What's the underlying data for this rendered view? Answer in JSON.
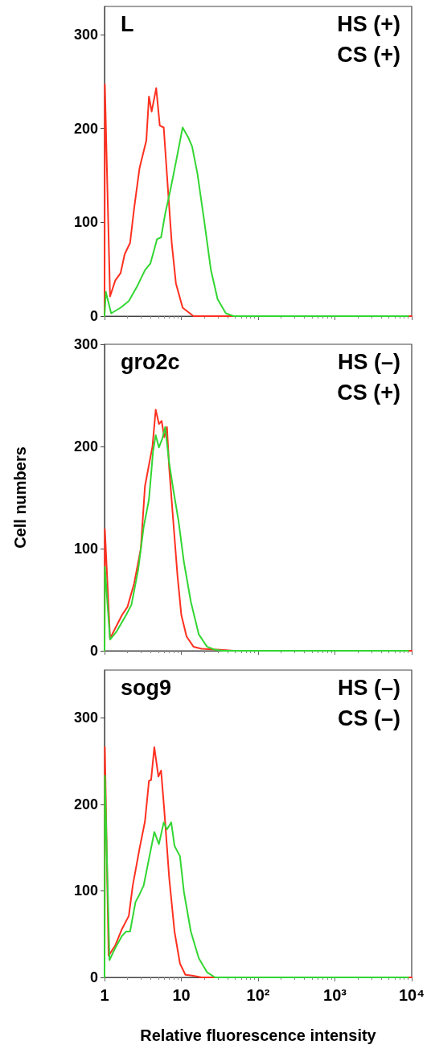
{
  "chart_data": [
    {
      "type": "line",
      "annotations": [
        "L",
        "HS (+)",
        "CS (+)"
      ],
      "log": "x",
      "xlim": [
        1,
        10000
      ],
      "xticks": [
        {
          "value": 1,
          "label": null
        },
        {
          "value": 10,
          "label": null
        },
        {
          "value": 100,
          "label": null
        },
        {
          "value": 1000,
          "label": null
        },
        {
          "value": 10000,
          "label": null
        }
      ],
      "ylim": [
        0,
        330
      ],
      "yticks": [
        0,
        100,
        200,
        300
      ],
      "tick_labels": "y",
      "grid": false,
      "marker": "none",
      "line_style": "solid",
      "series": [
        {
          "color": "#ff3020",
          "x": [
            1,
            1.01,
            1.18,
            1.38,
            1.62,
            1.83,
            2.15,
            2.43,
            2.86,
            3.5,
            3.79,
            4.11,
            4.71,
            5.24,
            5.9,
            6.7,
            7.5,
            8.5,
            10.4,
            14.4,
            10000
          ],
          "values": [
            0,
            247,
            21,
            38,
            46,
            66,
            78,
            115,
            158,
            187,
            234,
            218,
            243,
            203,
            201,
            135,
            78,
            35,
            9,
            0,
            0
          ]
        },
        {
          "color": "#33d633",
          "x": [
            1,
            1.04,
            1.22,
            1.62,
            2.07,
            2.63,
            3.36,
            3.95,
            4.83,
            5.45,
            6.16,
            7.23,
            8.5,
            10.4,
            12.2,
            13.8,
            16.2,
            19.9,
            24.3,
            29.7,
            38,
            48,
            9000
          ],
          "values": [
            0,
            26,
            3,
            9,
            16,
            31,
            49,
            56,
            82,
            84,
            109,
            135,
            164,
            201,
            191,
            181,
            152,
            101,
            49,
            18,
            3,
            0,
            0
          ]
        }
      ]
    },
    {
      "type": "line",
      "annotations": [
        "gro2c",
        "HS (–)",
        "CS (+)"
      ],
      "ylabel": "Cell numbers",
      "log": "x",
      "xlim": [
        1,
        10000
      ],
      "xticks": [
        {
          "value": 1,
          "label": null
        },
        {
          "value": 10,
          "label": null
        },
        {
          "value": 100,
          "label": null
        },
        {
          "value": 1000,
          "label": null
        },
        {
          "value": 10000,
          "label": null
        }
      ],
      "ylim": [
        0,
        300
      ],
      "yticks": [
        0,
        100,
        200,
        300
      ],
      "tick_labels": "y",
      "grid": false,
      "marker": "none",
      "line_style": "solid",
      "series": [
        {
          "color": "#ff3020",
          "x": [
            1,
            1.01,
            1.18,
            1.38,
            1.69,
            1.99,
            2.43,
            2.97,
            3.36,
            3.79,
            4.21,
            4.64,
            5.11,
            5.54,
            6.0,
            6.5,
            6.95,
            7.85,
            8.9,
            10,
            11.7,
            14.4,
            18.3,
            32,
            48,
            10000
          ],
          "values": [
            0,
            119,
            12,
            22,
            35,
            43,
            66,
            100,
            161,
            182,
            200,
            236,
            222,
            225,
            209,
            219,
            179,
            127,
            74,
            35,
            14,
            4,
            2,
            1,
            0,
            0
          ]
        },
        {
          "color": "#33d633",
          "x": [
            1,
            1.01,
            1.18,
            1.44,
            1.91,
            2.24,
            2.74,
            3.23,
            3.79,
            4.28,
            4.64,
            5.11,
            5.67,
            6.16,
            6.95,
            7.85,
            9.2,
            10.8,
            13.3,
            16.9,
            21.6,
            27.5,
            35,
            9000
          ],
          "values": [
            0,
            82,
            11,
            19,
            35,
            45,
            79,
            121,
            148,
            195,
            211,
            199,
            208,
            219,
            184,
            158,
            127,
            87,
            48,
            16,
            4,
            1,
            0,
            0
          ]
        }
      ]
    },
    {
      "type": "line",
      "annotations": [
        "sog9",
        "HS (–)",
        "CS (–)"
      ],
      "xlabel": "Relative fluorescence intensity",
      "log": "x",
      "xlim": [
        1,
        10000
      ],
      "xticks": [
        1,
        10,
        {
          "value": 100,
          "label": "10²"
        },
        {
          "value": 1000,
          "label": "10³"
        },
        {
          "value": 10000,
          "label": "10⁴"
        }
      ],
      "ylim": [
        0,
        355
      ],
      "yticks": [
        0,
        100,
        200,
        300
      ],
      "grid": false,
      "marker": "none",
      "line_style": "solid",
      "series": [
        {
          "color": "#ff3020",
          "x": [
            1,
            1.01,
            1.13,
            1.38,
            1.69,
            2.07,
            2.33,
            2.86,
            3.36,
            3.79,
            4.04,
            4.45,
            5.03,
            5.45,
            6.0,
            6.95,
            8.15,
            9.6,
            11.3,
            13.8,
            18.3,
            10000
          ],
          "values": [
            0,
            266,
            25,
            37,
            56,
            71,
            106,
            149,
            180,
            227,
            228,
            266,
            232,
            239,
            193,
            115,
            53,
            16,
            3,
            2,
            0,
            0
          ]
        },
        {
          "color": "#33d633",
          "x": [
            1,
            1.01,
            1.16,
            1.38,
            1.69,
            1.91,
            2.15,
            2.53,
            2.86,
            3.23,
            3.79,
            4.45,
            5.11,
            5.9,
            6.5,
            7.39,
            8.15,
            9.6,
            10.8,
            13.3,
            16.9,
            21.6,
            27.5,
            9000
          ],
          "values": [
            0,
            233,
            20,
            34,
            48,
            53,
            53,
            87,
            96,
            106,
            137,
            168,
            154,
            179,
            171,
            179,
            152,
            140,
            99,
            53,
            22,
            6,
            0,
            0
          ]
        }
      ]
    }
  ]
}
